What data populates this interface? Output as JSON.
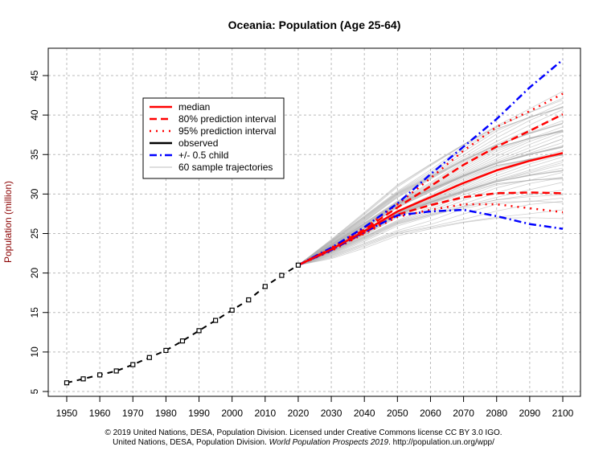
{
  "chart_data": {
    "type": "line",
    "title": "Oceania: Population (Age 25-64)",
    "xlabel": "",
    "ylabel": "Population (million)",
    "xlim": [
      1950,
      2100
    ],
    "ylim": [
      5,
      46
    ],
    "grid": true,
    "legend_placement": "top-left",
    "x_ticks": [
      "1950",
      "1960",
      "1970",
      "1980",
      "1990",
      "2000",
      "2010",
      "2020",
      "2030",
      "2040",
      "2050",
      "2060",
      "2070",
      "2080",
      "2090",
      "2100"
    ],
    "y_ticks": [
      "5",
      "10",
      "15",
      "20",
      "25",
      "30",
      "35",
      "40",
      "45"
    ],
    "legend": [
      {
        "label": "median",
        "color": "#ff0000",
        "style": "solid"
      },
      {
        "label": "80% prediction interval",
        "color": "#ff0000",
        "style": "dashed"
      },
      {
        "label": "95% prediction interval",
        "color": "#ff0000",
        "style": "dotted"
      },
      {
        "label": "observed",
        "color": "#000000",
        "style": "solid"
      },
      {
        "label": "+/- 0.5 child",
        "color": "#0000ff",
        "style": "dashdot"
      },
      {
        "label": "60 sample trajectories",
        "color": "#bebebe",
        "style": "solid"
      }
    ],
    "observed": {
      "x": [
        1950,
        1955,
        1960,
        1965,
        1970,
        1975,
        1980,
        1985,
        1990,
        1995,
        2000,
        2005,
        2010,
        2015,
        2020
      ],
      "y": [
        6.1,
        6.6,
        7.1,
        7.6,
        8.4,
        9.3,
        10.2,
        11.4,
        12.7,
        14.0,
        15.3,
        16.6,
        18.3,
        19.7,
        21.0
      ]
    },
    "projection_x": [
      2020,
      2030,
      2040,
      2050,
      2060,
      2070,
      2080,
      2090,
      2100
    ],
    "median": [
      21.0,
      23.0,
      25.3,
      27.8,
      29.6,
      31.4,
      33.0,
      34.2,
      35.2
    ],
    "pi80_upper": [
      21.0,
      23.1,
      25.5,
      28.3,
      31.0,
      33.7,
      36.0,
      38.0,
      40.1
    ],
    "pi80_lower": [
      21.0,
      22.9,
      25.1,
      27.4,
      28.6,
      29.6,
      30.1,
      30.2,
      30.1
    ],
    "pi95_upper": [
      21.0,
      23.2,
      25.7,
      28.7,
      32.0,
      35.5,
      38.5,
      40.5,
      42.7
    ],
    "pi95_lower": [
      21.0,
      22.8,
      25.0,
      27.1,
      28.0,
      28.7,
      28.7,
      28.2,
      27.7
    ],
    "half_child_upper": [
      21.0,
      23.2,
      25.8,
      28.8,
      32.5,
      36.0,
      39.5,
      43.5,
      47.0
    ],
    "half_child_lower": [
      21.0,
      22.9,
      25.2,
      27.3,
      27.8,
      28.0,
      27.2,
      26.2,
      25.6
    ],
    "sample_2100_values": [
      27.3,
      28.0,
      28.6,
      29.2,
      29.8,
      30.3,
      30.8,
      31.2,
      31.6,
      32.0,
      32.3,
      32.6,
      32.9,
      33.2,
      33.5,
      33.7,
      33.9,
      34.1,
      34.3,
      34.5,
      34.7,
      34.9,
      35.0,
      35.2,
      35.4,
      35.6,
      35.8,
      36.0,
      36.2,
      36.4,
      36.6,
      36.8,
      37.0,
      37.2,
      37.4,
      37.6,
      37.8,
      38.0,
      38.2,
      38.4,
      38.6,
      38.8,
      39.0,
      39.2,
      39.4,
      39.7,
      40.0,
      40.3,
      40.6,
      40.9,
      41.2,
      41.5,
      41.8,
      42.2,
      42.6,
      43.0,
      33.0,
      34.0,
      36.0,
      37.0
    ]
  },
  "footer": {
    "line1": "© 2019 United Nations, DESA, Population Division. Licensed under Creative Commons license CC BY 3.0 IGO.",
    "line2_prefix": "United Nations, DESA, Population Division. ",
    "line2_italic": "World Population Prospects 2019",
    "line2_suffix": ". http://population.un.org/wpp/"
  }
}
